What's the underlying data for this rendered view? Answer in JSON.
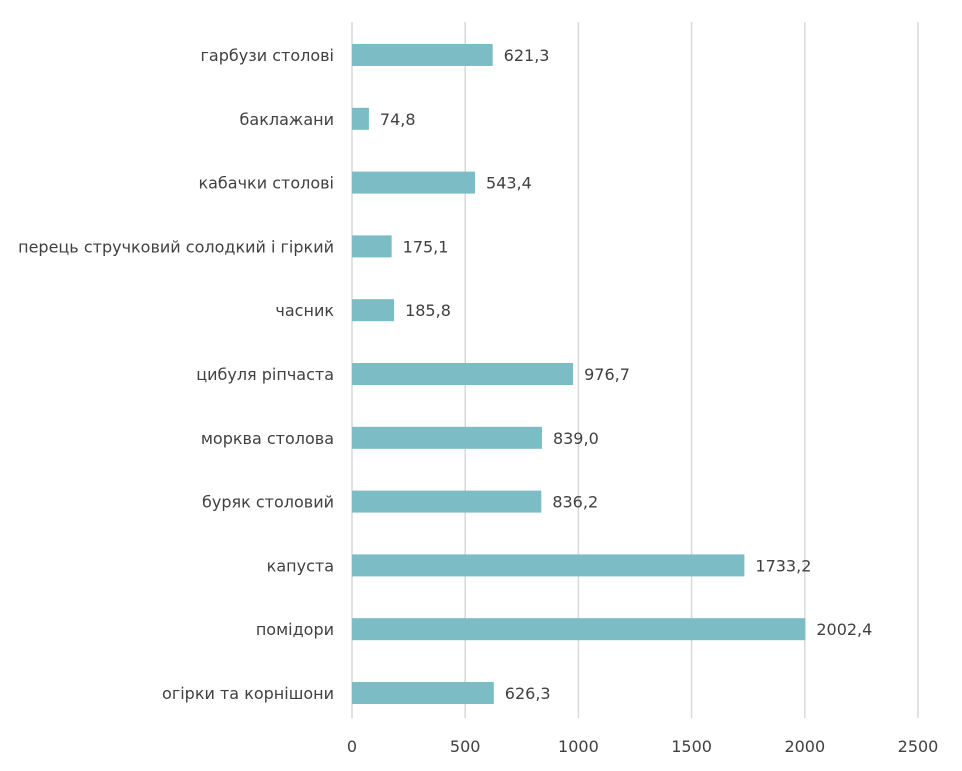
{
  "chart_data": {
    "type": "bar",
    "orientation": "horizontal",
    "title": "",
    "xlabel": "",
    "ylabel": "",
    "categories": [
      "гарбузи столові",
      "баклажани",
      "кабачки столові",
      "перець стручковий солодкий і  гіркий",
      "часник",
      "цибуля ріпчаста",
      "морква столова",
      "буряк столовий",
      "капуста",
      "помідори",
      "огірки та корнішони"
    ],
    "values": [
      621.3,
      74.8,
      543.4,
      175.1,
      185.8,
      976.7,
      839.0,
      836.2,
      1733.2,
      2002.4,
      626.3
    ],
    "value_labels": [
      "621,3",
      "74,8",
      "543,4",
      "175,1",
      "185,8",
      "976,7",
      "839,0",
      "836,2",
      "1733,2",
      "2002,4",
      "626,3"
    ],
    "xlim": [
      0,
      2500
    ],
    "x_ticks": [
      0,
      500,
      1000,
      1500,
      2000,
      2500
    ],
    "x_tick_labels": [
      "0",
      "500",
      "1000",
      "1500",
      "2000",
      "2500"
    ],
    "grid": "vertical",
    "legend": "none",
    "bar_color": "#7bbcc5"
  }
}
